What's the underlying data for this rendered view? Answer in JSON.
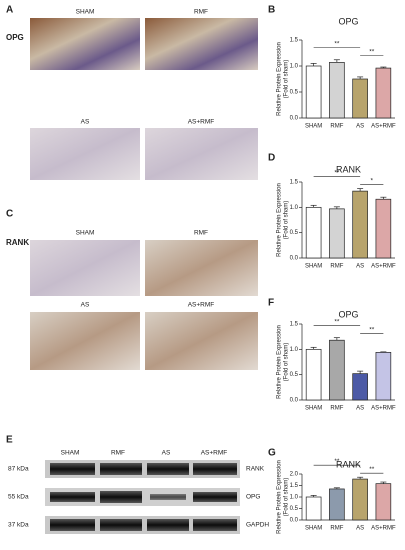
{
  "panel_a": {
    "letter": "A",
    "row_label": "OPG",
    "labels": [
      "SHAM",
      "RMF",
      "AS",
      "AS+RMF"
    ]
  },
  "panel_c": {
    "letter": "C",
    "row_label": "RANK",
    "labels": [
      "SHAM",
      "RMF",
      "AS",
      "AS+RMF"
    ]
  },
  "panel_e": {
    "letter": "E",
    "lanes": [
      "SHAM",
      "RMF",
      "AS",
      "AS+RMF"
    ],
    "markers": [
      "87 kDa",
      "55 kDa",
      "37 kDa"
    ],
    "proteins": [
      "RANK",
      "OPG",
      "GAPDH"
    ]
  },
  "chart_data": [
    {
      "type": "bar",
      "letter": "B",
      "title": "OPG",
      "y_label": "Relative Protein Expression",
      "y_label_2": "(Fold of sham)",
      "categories": [
        "SHAM",
        "RMF",
        "AS",
        "AS+RMF"
      ],
      "values": [
        1.0,
        1.07,
        0.75,
        0.96
      ],
      "errors": [
        0.05,
        0.05,
        0.04,
        0.02
      ],
      "colors": [
        "#ffffff",
        "#d3d3d3",
        "#b8a46c",
        "#dca7a7"
      ],
      "ylim": [
        0,
        1.5
      ],
      "yticks": [
        {
          "value": 0,
          "label": "0.0"
        },
        {
          "value": 0.5,
          "label": "0.5"
        },
        {
          "value": 1,
          "label": "1.0"
        },
        {
          "value": 1.5,
          "label": "1.5"
        }
      ],
      "annotations": [
        "**",
        "**"
      ]
    },
    {
      "type": "bar",
      "letter": "D",
      "title": "RANK",
      "y_label": "Relative Protein Expression",
      "y_label_2": "(Fold of sham)",
      "categories": [
        "SHAM",
        "RMF",
        "AS",
        "AS+RMF"
      ],
      "values": [
        1.0,
        0.97,
        1.32,
        1.16
      ],
      "errors": [
        0.04,
        0.04,
        0.05,
        0.04
      ],
      "colors": [
        "#ffffff",
        "#d3d3d3",
        "#b8a46c",
        "#dca7a7"
      ],
      "ylim": [
        0,
        1.5
      ],
      "yticks": [
        {
          "value": 0,
          "label": "0.0"
        },
        {
          "value": 0.5,
          "label": "0.5"
        },
        {
          "value": 1,
          "label": "1.0"
        },
        {
          "value": 1.5,
          "label": "1.5"
        }
      ],
      "annotations": [
        "**",
        "*"
      ]
    },
    {
      "type": "bar",
      "letter": "F",
      "title": "OPG",
      "y_label": "Relative Protein Expression",
      "y_label_2": "(Fold of sham)",
      "categories": [
        "SHAM",
        "RMF",
        "AS",
        "AS+RMF"
      ],
      "values": [
        1.0,
        1.18,
        0.52,
        0.94
      ],
      "errors": [
        0.04,
        0.05,
        0.05,
        0.01
      ],
      "colors": [
        "#ffffff",
        "#a8a8a8",
        "#4c5aa6",
        "#c4c4e6"
      ],
      "ylim": [
        0,
        1.5
      ],
      "yticks": [
        {
          "value": 0,
          "label": "0.0"
        },
        {
          "value": 0.5,
          "label": "0.5"
        },
        {
          "value": 1,
          "label": "1.0"
        },
        {
          "value": 1.5,
          "label": "1.5"
        }
      ],
      "annotations": [
        "**",
        "**"
      ]
    },
    {
      "type": "bar",
      "letter": "G",
      "title": "RANK",
      "y_label": "Relative Protein Expression",
      "y_label_2": "(Fold of sham)",
      "categories": [
        "SHAM",
        "RMF",
        "AS",
        "AS+RMF"
      ],
      "values": [
        1.0,
        1.35,
        1.78,
        1.58
      ],
      "errors": [
        0.07,
        0.05,
        0.08,
        0.07
      ],
      "colors": [
        "#ffffff",
        "#8c9aac",
        "#b8a46c",
        "#dca7a7"
      ],
      "ylim": [
        0,
        2
      ],
      "yticks": [
        {
          "value": 0,
          "label": "0.0"
        },
        {
          "value": 0.5,
          "label": "0.5"
        },
        {
          "value": 1,
          "label": "1.0"
        },
        {
          "value": 1.5,
          "label": "1.5"
        },
        {
          "value": 2,
          "label": "2.0"
        }
      ],
      "annotations": [
        "**",
        "**"
      ]
    }
  ]
}
